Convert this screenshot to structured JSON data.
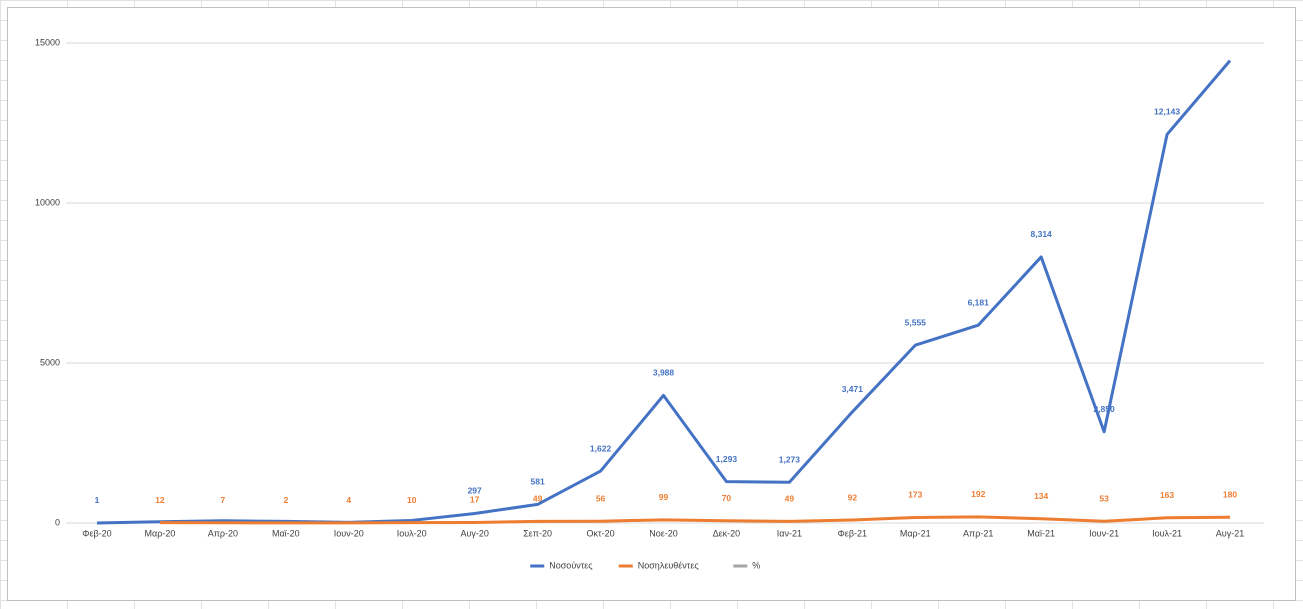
{
  "chart_data": {
    "type": "line",
    "categories": [
      "Φεβ-20",
      "Μαρ-20",
      "Απρ-20",
      "Μαϊ-20",
      "Ιουν-20",
      "Ιουλ-20",
      "Αυγ-20",
      "Σεπ-20",
      "Οκτ-20",
      "Νοε-20",
      "Δεκ-20",
      "Ιαν-21",
      "Φεβ-21",
      "Μαρ-21",
      "Απρ-21",
      "Μαϊ-21",
      "Ιουν-21",
      "Ιουλ-21",
      "Αυγ-21"
    ],
    "series": [
      {
        "name": "Νοσούντες",
        "color": "#4472c4",
        "values": [
          1,
          40,
          70,
          50,
          20,
          80,
          297,
          581,
          1622,
          3988,
          1293,
          1273,
          3471,
          5555,
          6181,
          8314,
          2850,
          12143,
          14450
        ],
        "value_labels": [
          "1",
          null,
          null,
          null,
          null,
          null,
          "297",
          "581",
          "1,622",
          "3,988",
          "1,293",
          "1,273",
          "3,471",
          "5,555",
          "6,181",
          "8,314",
          "2,850",
          "12,143",
          null
        ]
      },
      {
        "name": "Νοσηλευθέντες",
        "color": "#ed7d31",
        "values": [
          null,
          12,
          7,
          2,
          4,
          10,
          17,
          49,
          56,
          99,
          70,
          49,
          92,
          173,
          192,
          134,
          53,
          163,
          180
        ]
      },
      {
        "name": "%",
        "color": "#a5a5a5",
        "values": [
          null,
          null,
          null,
          null,
          null,
          null,
          null,
          null,
          null,
          null,
          null,
          null,
          null,
          null,
          null,
          null,
          null,
          null,
          null
        ]
      }
    ],
    "ylim": [
      0,
      15000
    ],
    "yticks": [
      0,
      5000,
      10000,
      15000
    ],
    "grid": true,
    "legend": "bottom"
  }
}
